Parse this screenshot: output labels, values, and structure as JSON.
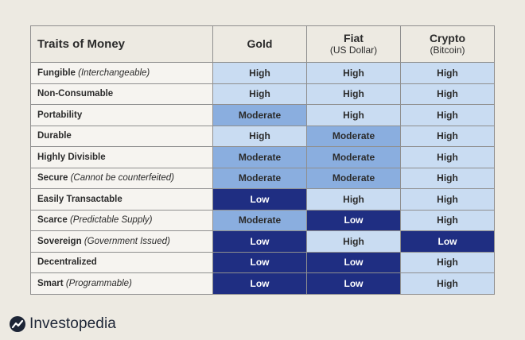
{
  "table": {
    "header": {
      "trait_label": "Traits of Money",
      "columns": [
        {
          "name": "Gold",
          "sub": ""
        },
        {
          "name": "Fiat",
          "sub": "(US Dollar)"
        },
        {
          "name": "Crypto",
          "sub": "(Bitcoin)"
        }
      ]
    },
    "rows": [
      {
        "trait": "Fungible",
        "note": "(Interchangeable)",
        "values": [
          "High",
          "High",
          "High"
        ]
      },
      {
        "trait": "Non-Consumable",
        "note": "",
        "values": [
          "High",
          "High",
          "High"
        ]
      },
      {
        "trait": "Portability",
        "note": "",
        "values": [
          "Moderate",
          "High",
          "High"
        ]
      },
      {
        "trait": "Durable",
        "note": "",
        "values": [
          "High",
          "Moderate",
          "High"
        ]
      },
      {
        "trait": "Highly Divisible",
        "note": "",
        "values": [
          "Moderate",
          "Moderate",
          "High"
        ]
      },
      {
        "trait": "Secure",
        "note": "(Cannot be counterfeited)",
        "values": [
          "Moderate",
          "Moderate",
          "High"
        ]
      },
      {
        "trait": "Easily Transactable",
        "note": "",
        "values": [
          "Low",
          "High",
          "High"
        ]
      },
      {
        "trait": "Scarce",
        "note": "(Predictable Supply)",
        "values": [
          "Moderate",
          "Low",
          "High"
        ]
      },
      {
        "trait": "Sovereign",
        "note": "(Government Issued)",
        "values": [
          "Low",
          "High",
          "Low"
        ]
      },
      {
        "trait": "Decentralized",
        "note": "",
        "values": [
          "Low",
          "Low",
          "High"
        ]
      },
      {
        "trait": "Smart",
        "note": "(Programmable)",
        "values": [
          "Low",
          "Low",
          "High"
        ]
      }
    ]
  },
  "colors": {
    "High": "#c9dcf2",
    "Moderate": "#8aaedf",
    "Low": "#1f2e82",
    "background": "#edeae2"
  },
  "brand": {
    "name": "Investopedia",
    "icon": "investopedia-logo-icon"
  }
}
